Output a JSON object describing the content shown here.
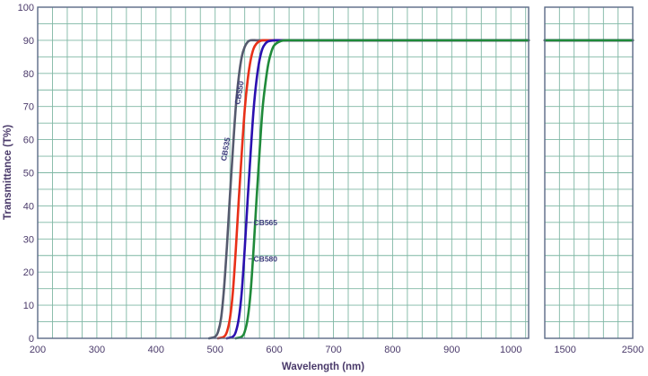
{
  "chart_data": {
    "type": "line",
    "title": "",
    "xlabel": "Wavelength (nm)",
    "ylabel": "Transmittance (T%)",
    "ylim": [
      0,
      100
    ],
    "yticks": [
      0,
      10,
      20,
      30,
      40,
      50,
      60,
      70,
      80,
      90,
      100
    ],
    "panels": [
      {
        "xlim": [
          200,
          1030
        ],
        "xticks": [
          200,
          300,
          400,
          500,
          600,
          700,
          800,
          900,
          1000
        ]
      },
      {
        "xlim": [
          1200,
          2500
        ],
        "xticks": [
          1500,
          2500
        ]
      }
    ],
    "grid": true,
    "legend": "inline labels",
    "series": [
      {
        "name": "CB535",
        "color": "#555a6e",
        "x": [
          490,
          500,
          505,
          510,
          515,
          520,
          525,
          530,
          535,
          540,
          545,
          550,
          555,
          560,
          570,
          580,
          600,
          650,
          1030,
          1200,
          2500
        ],
        "y": [
          0,
          0.5,
          2,
          6,
          15,
          28,
          43,
          57,
          70,
          79,
          85,
          88,
          89.5,
          90,
          90,
          90,
          90,
          90,
          90,
          90,
          90
        ]
      },
      {
        "name": "CB550",
        "color": "#e83018",
        "x": [
          505,
          515,
          520,
          525,
          530,
          535,
          540,
          545,
          550,
          555,
          560,
          565,
          570,
          575,
          580,
          590,
          610,
          650,
          1030,
          1200,
          2500
        ],
        "y": [
          0,
          0.5,
          2,
          6,
          14,
          27,
          42,
          56,
          69,
          78,
          84,
          87.5,
          89,
          89.7,
          90,
          90,
          90,
          90,
          90,
          90,
          90
        ]
      },
      {
        "name": "CB565",
        "color": "#2a10b0",
        "x": [
          520,
          530,
          535,
          540,
          545,
          550,
          555,
          560,
          565,
          570,
          575,
          580,
          585,
          590,
          600,
          610,
          630,
          660,
          1030,
          1200,
          2500
        ],
        "y": [
          0,
          0.5,
          2,
          6,
          14,
          27,
          42,
          56,
          69,
          78,
          84,
          87.5,
          89,
          89.7,
          90,
          90,
          90,
          90,
          90,
          90,
          90
        ]
      },
      {
        "name": "CB580",
        "color": "#1f8a3a",
        "x": [
          535,
          545,
          550,
          555,
          560,
          565,
          570,
          575,
          580,
          585,
          590,
          595,
          600,
          610,
          620,
          630,
          645,
          670,
          1030,
          1200,
          2500
        ],
        "y": [
          0,
          0.5,
          2,
          6,
          14,
          27,
          42,
          56,
          69,
          77,
          83,
          86.5,
          88.5,
          89.7,
          90,
          90,
          90,
          90,
          90,
          90,
          90
        ]
      }
    ],
    "annotations": [
      {
        "text": "CB535",
        "x": 522,
        "y": 57,
        "rotate": true
      },
      {
        "text": "CB550",
        "x": 545,
        "y": 74,
        "rotate": true
      },
      {
        "text": "CB565",
        "x": 565,
        "y": 35,
        "rotate": false,
        "leader_x": 548
      },
      {
        "text": "CB580",
        "x": 565,
        "y": 24,
        "rotate": false,
        "leader_x": 556
      }
    ]
  }
}
